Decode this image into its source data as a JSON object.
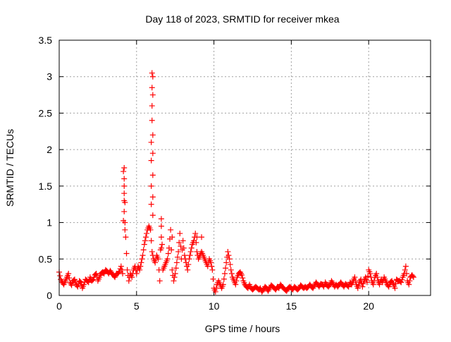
{
  "chart_data": {
    "type": "scatter",
    "title": "Day 118 of 2023, SRMTID for receiver mkea",
    "xlabel": "GPS time / hours",
    "ylabel": "SRMTID / TECUs",
    "xlim": [
      0,
      24
    ],
    "ylim": [
      0,
      3.5
    ],
    "xticks": [
      "0",
      "5",
      "10",
      "15",
      "20"
    ],
    "xtick_values": [
      0,
      5,
      10,
      15,
      20
    ],
    "yticks": [
      "0",
      "0.5",
      "1",
      "1.5",
      "2",
      "2.5",
      "3",
      "3.5"
    ],
    "ytick_values": [
      0,
      0.5,
      1,
      1.5,
      2,
      2.5,
      3,
      3.5
    ],
    "grid": true,
    "marker": "+",
    "color": "#ff0000",
    "series": [
      {
        "name": "SRMTID",
        "x_start": 0,
        "x_step": 0.1,
        "values": [
          0.32,
          0.22,
          0.18,
          0.15,
          0.2,
          0.25,
          0.3,
          0.18,
          0.14,
          0.2,
          0.22,
          0.15,
          0.12,
          0.2,
          0.18,
          0.1,
          0.15,
          0.22,
          0.2,
          0.18,
          0.25,
          0.2,
          0.22,
          0.28,
          0.3,
          0.2,
          0.25,
          0.3,
          0.32,
          0.3,
          0.35,
          0.33,
          0.3,
          0.34,
          0.3,
          0.28,
          0.25,
          0.3,
          0.3,
          0.33,
          0.4,
          0.3,
          1.75,
          0.8,
          0.35,
          0.2,
          0.3,
          0.25,
          0.35,
          0.4,
          0.3,
          0.4,
          0.35,
          0.45,
          0.55,
          0.7,
          0.8,
          0.9,
          0.95,
          0.9,
          0.6,
          0.5,
          0.45,
          0.55,
          0.5,
          0.2,
          1.05,
          0.35,
          0.4,
          0.45,
          0.5,
          0.65,
          0.9,
          0.35,
          0.2,
          0.3,
          0.45,
          0.6,
          0.85,
          0.5,
          0.75,
          0.55,
          0.45,
          0.35,
          0.5,
          0.6,
          0.7,
          0.75,
          0.85,
          0.6,
          0.5,
          0.55,
          0.6,
          0.55,
          0.5,
          0.45,
          0.4,
          0.5,
          0.45,
          0.35,
          0.1,
          0.05,
          0.15,
          0.2,
          0.15,
          0.1,
          0.15,
          0.3,
          0.45,
          0.6,
          0.5,
          0.35,
          0.25,
          0.2,
          0.15,
          0.25,
          0.3,
          0.32,
          0.28,
          0.2,
          0.15,
          0.12,
          0.1,
          0.15,
          0.1,
          0.08,
          0.1,
          0.12,
          0.1,
          0.08,
          0.1,
          0.05,
          0.08,
          0.12,
          0.1,
          0.06,
          0.1,
          0.14,
          0.12,
          0.1,
          0.08,
          0.12,
          0.1,
          0.15,
          0.12,
          0.1,
          0.08,
          0.06,
          0.1,
          0.12,
          0.1,
          0.08,
          0.12,
          0.1,
          0.08,
          0.1,
          0.14,
          0.12,
          0.1,
          0.12,
          0.1,
          0.12,
          0.15,
          0.12,
          0.1,
          0.14,
          0.18,
          0.15,
          0.12,
          0.16,
          0.15,
          0.12,
          0.18,
          0.14,
          0.12,
          0.15,
          0.2,
          0.16,
          0.12,
          0.15,
          0.12,
          0.15,
          0.18,
          0.15,
          0.12,
          0.16,
          0.14,
          0.12,
          0.18,
          0.15,
          0.2,
          0.25,
          0.15,
          0.1,
          0.18,
          0.22,
          0.12,
          0.2,
          0.25,
          0.18,
          0.35,
          0.3,
          0.2,
          0.15,
          0.25,
          0.3,
          0.2,
          0.15,
          0.22,
          0.18,
          0.25,
          0.2,
          0.15,
          0.12,
          0.18,
          0.2,
          0.15,
          0.1,
          0.22,
          0.2,
          0.2,
          0.18,
          0.25,
          0.3,
          0.4,
          0.2,
          0.15,
          0.25,
          0.28,
          0.25
        ],
        "extra_points": [
          [
            4.15,
            1.7
          ],
          [
            4.2,
            1.6
          ],
          [
            4.2,
            1.5
          ],
          [
            4.2,
            1.4
          ],
          [
            4.2,
            1.3
          ],
          [
            4.2,
            1.15
          ],
          [
            4.25,
            1.0
          ],
          [
            4.25,
            0.9
          ],
          [
            6.0,
            3.05
          ],
          [
            6.05,
            3.0
          ],
          [
            6.0,
            2.85
          ],
          [
            6.05,
            2.75
          ],
          [
            6.0,
            2.6
          ],
          [
            6.0,
            2.4
          ],
          [
            6.05,
            2.2
          ],
          [
            5.95,
            2.1
          ],
          [
            6.05,
            1.95
          ],
          [
            5.95,
            1.85
          ],
          [
            6.05,
            1.65
          ],
          [
            5.95,
            1.5
          ],
          [
            6.05,
            1.35
          ],
          [
            5.95,
            1.25
          ],
          [
            6.05,
            1.1
          ],
          [
            6.6,
            0.95
          ],
          [
            6.6,
            0.8
          ],
          [
            6.6,
            0.65
          ],
          [
            7.3,
            0.8
          ],
          [
            8.9,
            0.8
          ],
          [
            9.2,
            0.8
          ]
        ]
      }
    ]
  }
}
